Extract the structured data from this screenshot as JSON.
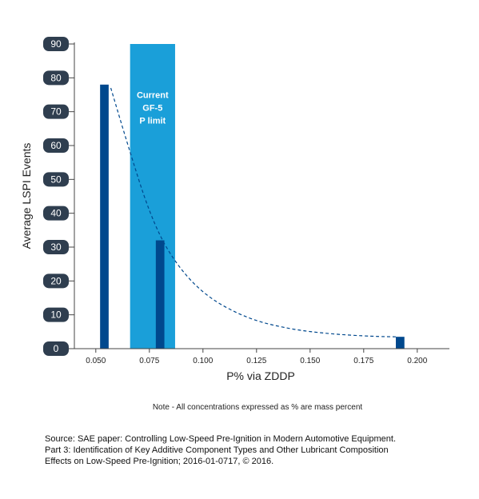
{
  "chart_data": {
    "type": "bar",
    "title": "",
    "xlabel": "P% via ZDDP",
    "ylabel": "Average LSPI Events",
    "xlim": [
      0.04,
      0.215
    ],
    "ylim": [
      0,
      90
    ],
    "x_ticks": [
      0.05,
      0.075,
      0.1,
      0.125,
      0.15,
      0.175,
      0.2
    ],
    "x_tick_labels": [
      "0.050",
      "0.075",
      "0.100",
      "0.125",
      "0.150",
      "0.175",
      "0.200"
    ],
    "y_ticks": [
      0,
      10,
      20,
      30,
      40,
      50,
      60,
      70,
      80,
      90
    ],
    "y_tick_labels": [
      "0",
      "10",
      "20",
      "30",
      "40",
      "50",
      "60",
      "70",
      "80",
      "90"
    ],
    "grid": false,
    "bars": [
      {
        "x": 0.052,
        "value": 78
      },
      {
        "x": 0.078,
        "value": 32
      },
      {
        "x": 0.19,
        "value": 3.5
      }
    ],
    "bar_color": "#00488d",
    "limit_band": {
      "x_range": [
        0.066,
        0.087
      ],
      "label_lines": [
        "Current",
        "GF-5",
        "P limit"
      ],
      "color": "#1a9fd9"
    },
    "trend_line": {
      "style": "dashed",
      "color": "#00488d",
      "points": [
        [
          0.057,
          77
        ],
        [
          0.065,
          60
        ],
        [
          0.075,
          40
        ],
        [
          0.085,
          27
        ],
        [
          0.1,
          16
        ],
        [
          0.12,
          9
        ],
        [
          0.14,
          5.8
        ],
        [
          0.16,
          4.3
        ],
        [
          0.18,
          3.6
        ],
        [
          0.19,
          3.5
        ]
      ]
    },
    "note": "Note - All concentrations expressed as % are mass percent"
  },
  "source": {
    "lines": [
      "Source: SAE paper: Controlling Low-Speed Pre-Ignition in Modern Automotive Equipment.",
      "Part 3: Identification of Key Additive Component Types and Other Lubricant Composition",
      "Effects on Low-Speed Pre-Ignition; 2016-01-0717, © 2016."
    ]
  }
}
